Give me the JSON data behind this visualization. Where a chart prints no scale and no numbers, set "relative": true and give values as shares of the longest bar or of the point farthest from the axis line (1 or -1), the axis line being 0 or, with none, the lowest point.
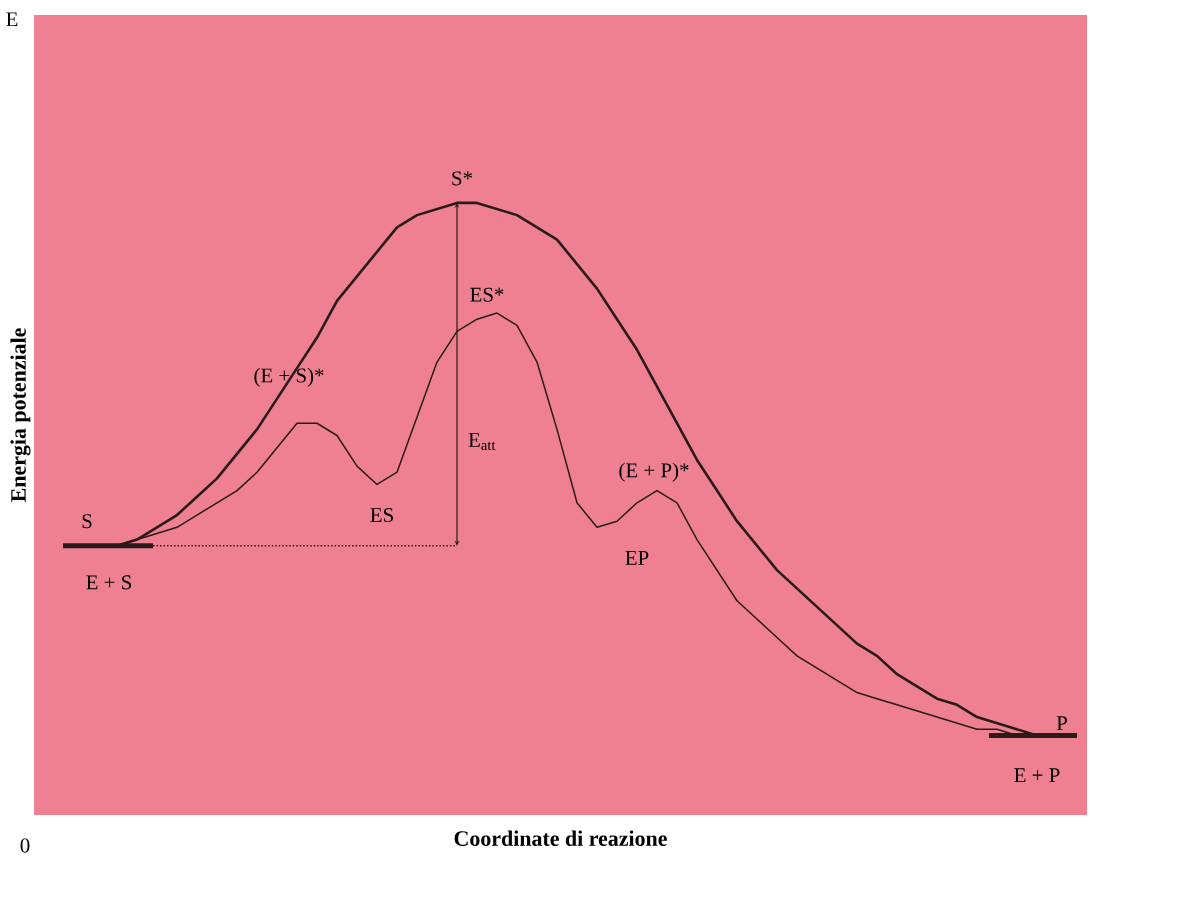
{
  "chart_data": {
    "type": "line",
    "relative": true,
    "xlabel": "Coordinate di reazione",
    "ylabel": "Energia potenziale",
    "categories": [
      null,
      null,
      null,
      null,
      null,
      null,
      null,
      null,
      null,
      null,
      null,
      null,
      null,
      null,
      null,
      null,
      null,
      null,
      null,
      null,
      null,
      null,
      null,
      null,
      null,
      null,
      null,
      null,
      null,
      null,
      null,
      null,
      null,
      null,
      null,
      null,
      null,
      null,
      null,
      null,
      null,
      null,
      null,
      null,
      null,
      null,
      null,
      null
    ],
    "series": [
      {
        "color": "#2a1a1a",
        "values": [
          0.44,
          0.44,
          0.45,
          0.47,
          0.49,
          0.52,
          0.55,
          0.59,
          0.63,
          0.68,
          0.73,
          0.78,
          0.84,
          0.88,
          0.92,
          0.96,
          0.98,
          0.99,
          1.0,
          1.0,
          0.99,
          0.98,
          0.96,
          0.94,
          0.9,
          0.86,
          0.81,
          0.76,
          0.7,
          0.64,
          0.58,
          0.53,
          0.48,
          0.44,
          0.4,
          0.37,
          0.34,
          0.31,
          0.28,
          0.26,
          0.23,
          0.21,
          0.19,
          0.18,
          0.16,
          0.15,
          0.14,
          0.13
        ]
      },
      {
        "color": "#2a1a1a",
        "values": [
          0.44,
          0.44,
          0.45,
          0.46,
          0.47,
          0.49,
          0.51,
          0.53,
          0.56,
          0.6,
          0.64,
          0.64,
          0.62,
          0.57,
          0.54,
          0.56,
          0.65,
          0.74,
          0.79,
          0.81,
          0.82,
          0.8,
          0.74,
          0.63,
          0.51,
          0.47,
          0.48,
          0.51,
          0.53,
          0.51,
          0.45,
          0.4,
          0.35,
          0.32,
          0.29,
          0.26,
          0.24,
          0.22,
          0.2,
          0.19,
          0.18,
          0.17,
          0.16,
          0.15,
          0.14,
          0.14,
          0.13,
          0.13
        ]
      }
    ],
    "annotations": [
      "S*",
      "ES*",
      "(E + S)*",
      "ES",
      "E$_{att}$",
      "(E + P)*",
      "EP",
      "S",
      "E + S",
      "P",
      "E + P",
      "E",
      "0"
    ],
    "line_style": "solid",
    "marker": "none"
  }
}
